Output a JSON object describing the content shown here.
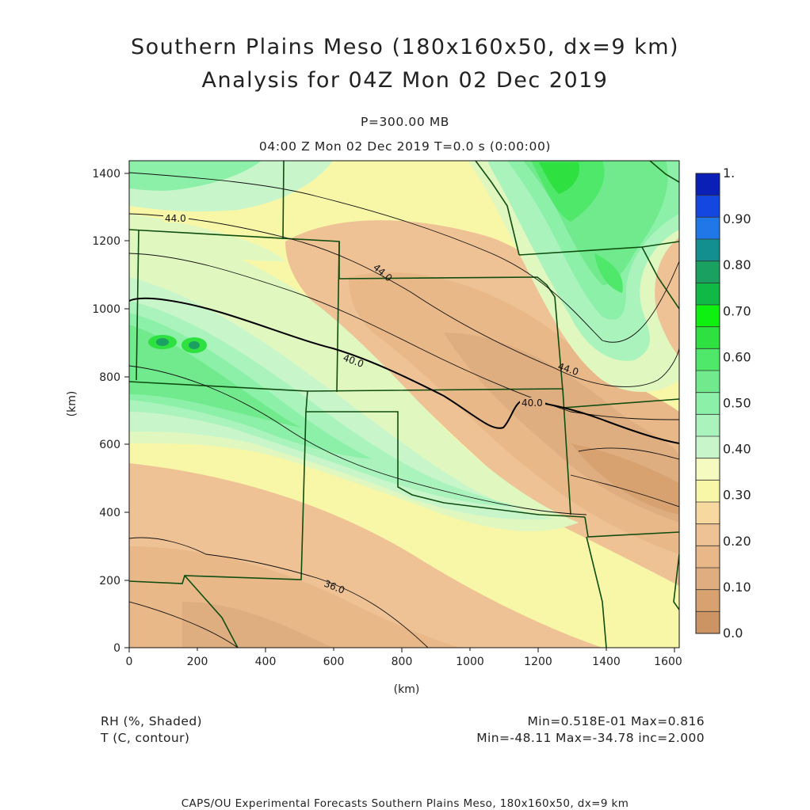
{
  "header": {
    "title_line1": "Southern Plains Meso (180x160x50, dx=9 km)",
    "title_line2": "Analysis for 04Z Mon 02 Dec 2019",
    "level": "P=300.00 MB",
    "time": "04:00 Z Mon 02 Dec 2019    T=0.0 s (0:00:00)"
  },
  "axes": {
    "x_ticks": [
      "0",
      "200",
      "400",
      "600",
      "800",
      "1000",
      "1200",
      "1400",
      "1600"
    ],
    "y_ticks": [
      "0",
      "200",
      "400",
      "600",
      "800",
      "1000",
      "1200",
      "1400"
    ],
    "x_label": "(km)",
    "y_label": "(km)"
  },
  "colorbar": {
    "labels": [
      "1.",
      "0.90",
      "0.80",
      "0.70",
      "0.60",
      "0.50",
      "0.40",
      "0.30",
      "0.20",
      "0.10",
      "0.0"
    ],
    "colors": [
      "#0a1fb5",
      "#1446e0",
      "#1f77e8",
      "#138f8f",
      "#1aa060",
      "#10b845",
      "#0ef010",
      "#2ee040",
      "#50e86a",
      "#70ea8c",
      "#8cf0a8",
      "#abf3bd",
      "#c9f5cb",
      "#f4fac0",
      "#f8f7a8",
      "#f7d9a0",
      "#efc295",
      "#e8b888",
      "#dfae80",
      "#d8a270",
      "#cc9463"
    ]
  },
  "contour_labels": [
    "44.0",
    "44.0",
    "40.0",
    "44.0",
    "40.0",
    "36.0"
  ],
  "notes": {
    "shaded_var": "RH (%, Shaded)",
    "contour_var": "T (C, contour)",
    "shaded_range": "Min=0.518E-01 Max=0.816",
    "contour_range": "Min=-48.11 Max=-34.78 inc=2.000"
  },
  "footer": "CAPS/OU Experimental Forecasts  Southern Plains Meso, 180x160x50, dx=9 km"
}
